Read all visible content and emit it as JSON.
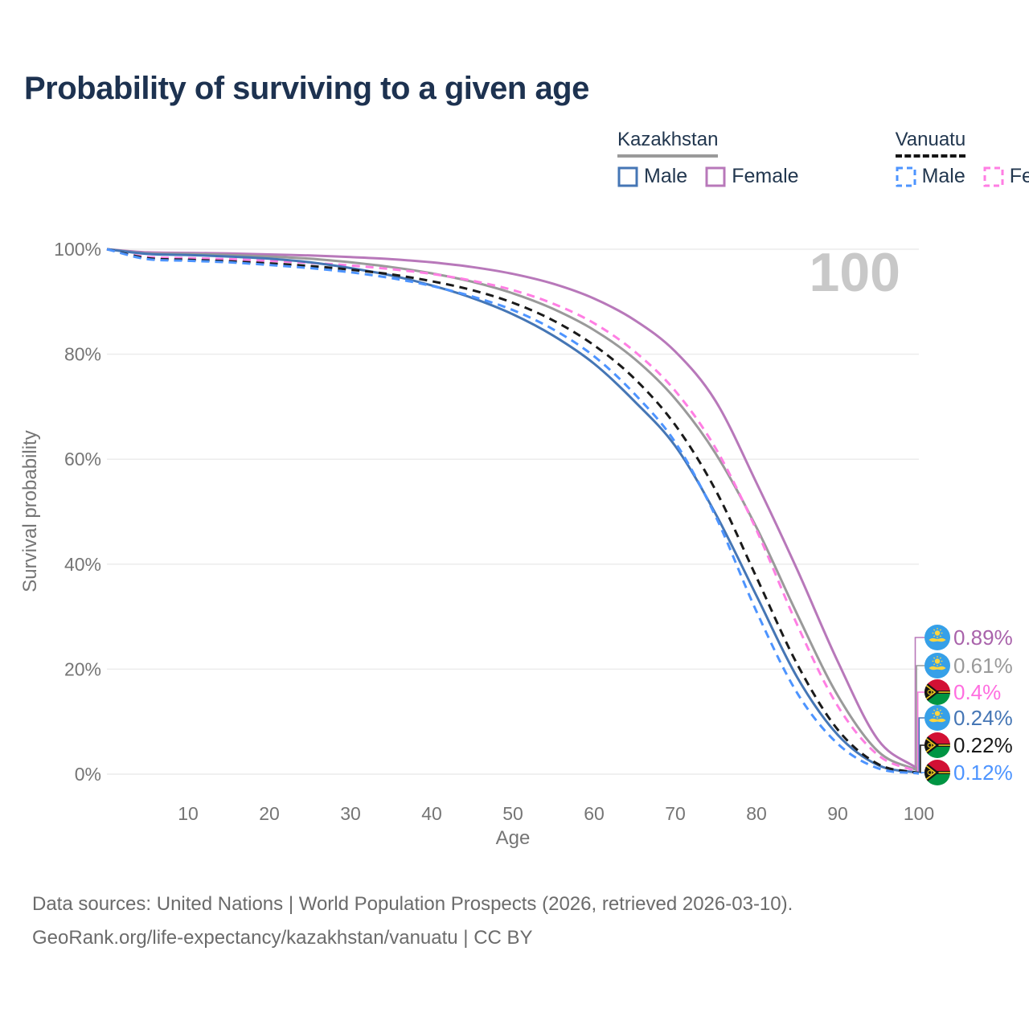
{
  "title": "Probability of surviving to a given age",
  "watermark": "100",
  "legend": {
    "groups": [
      {
        "country": "Kazakhstan",
        "dashed": false,
        "underline_color": "#9a9a9a",
        "items": [
          {
            "label": "Male",
            "color": "#4576b5",
            "dashed": false
          },
          {
            "label": "Female",
            "color": "#b878ba",
            "dashed": false
          }
        ]
      },
      {
        "country": "Vanuatu",
        "dashed": true,
        "underline_color": "#151515",
        "items": [
          {
            "label": "Male",
            "color": "#4d94ff",
            "dashed": true
          },
          {
            "label": "Female",
            "color": "#ff7ee3",
            "dashed": true
          }
        ]
      }
    ]
  },
  "chart_data": {
    "type": "line",
    "title": "Probability of surviving to a given age",
    "xlabel": "Age",
    "ylabel": "Survival probability",
    "xlim": [
      0,
      100
    ],
    "ylim": [
      0,
      100
    ],
    "grid": true,
    "x_ticks": [
      "10",
      "20",
      "30",
      "40",
      "50",
      "60",
      "70",
      "80",
      "90",
      "100"
    ],
    "x_tick_values": [
      10,
      20,
      30,
      40,
      50,
      60,
      70,
      80,
      90,
      100
    ],
    "y_ticks": [
      "100%",
      "80%",
      "60%",
      "40%",
      "20%",
      "0%"
    ],
    "y_tick_values": [
      100,
      80,
      60,
      40,
      20,
      0
    ],
    "x": [
      0,
      5,
      10,
      15,
      20,
      25,
      30,
      35,
      40,
      45,
      50,
      55,
      60,
      65,
      70,
      75,
      80,
      85,
      90,
      95,
      100
    ],
    "series": [
      {
        "name": "Kazakhstan Female",
        "color": "#b878ba",
        "label_color": "#a963ab",
        "dash": "solid",
        "flag": "kz",
        "end_label": "0.89%",
        "values": [
          100,
          99.4,
          99.3,
          99.2,
          99.0,
          98.8,
          98.5,
          98.1,
          97.5,
          96.6,
          95.3,
          93.4,
          90.6,
          86.5,
          80.5,
          71.0,
          55.5,
          39.0,
          21.5,
          6.5,
          0.89
        ]
      },
      {
        "name": "Kazakhstan (both sexes)",
        "color": "#9a9a9a",
        "label_color": "#9a9a9a",
        "dash": "solid",
        "flag": "kz",
        "end_label": "0.61%",
        "values": [
          100,
          99.2,
          99.1,
          98.9,
          98.6,
          98.2,
          97.5,
          96.6,
          95.4,
          93.8,
          91.6,
          88.6,
          84.6,
          79.1,
          71.5,
          61.0,
          47.0,
          30.5,
          15.0,
          4.3,
          0.61
        ]
      },
      {
        "name": "Vanuatu Female",
        "color": "#ff7ee3",
        "label_color": "#ff6ee0",
        "dash": "dashed",
        "flag": "vu",
        "end_label": "0.4%",
        "values": [
          100,
          98.5,
          98.3,
          98.1,
          97.8,
          97.4,
          96.9,
          96.2,
          95.3,
          94.0,
          92.2,
          89.6,
          85.9,
          80.5,
          73.0,
          62.0,
          46.5,
          28.5,
          13.0,
          3.6,
          0.4
        ]
      },
      {
        "name": "Kazakhstan Male",
        "color": "#4576b5",
        "label_color": "#4576b5",
        "dash": "solid",
        "flag": "kz",
        "end_label": "0.24%",
        "values": [
          100,
          99.1,
          98.9,
          98.6,
          98.2,
          97.5,
          96.4,
          95.0,
          93.1,
          90.7,
          87.6,
          83.5,
          78.2,
          71.0,
          62.5,
          49.5,
          34.0,
          18.5,
          7.5,
          1.7,
          0.24
        ]
      },
      {
        "name": "Vanuatu (both sexes)",
        "color": "#1a1a1a",
        "label_color": "#1a1a1a",
        "dash": "dashed",
        "flag": "vu",
        "end_label": "0.22%",
        "values": [
          100,
          98.3,
          98.0,
          97.7,
          97.3,
          96.8,
          96.1,
          95.2,
          93.9,
          92.2,
          89.8,
          86.4,
          81.7,
          75.3,
          66.5,
          54.0,
          37.5,
          21.0,
          8.5,
          1.9,
          0.22
        ]
      },
      {
        "name": "Vanuatu Male",
        "color": "#4d94ff",
        "label_color": "#4d94ff",
        "dash": "dashed",
        "flag": "vu",
        "end_label": "0.12%",
        "values": [
          100,
          98.1,
          97.8,
          97.5,
          97.0,
          96.4,
          95.6,
          94.5,
          93.0,
          91.0,
          88.4,
          84.7,
          79.6,
          72.4,
          63.2,
          49.0,
          31.0,
          15.5,
          5.8,
          1.1,
          0.12
        ]
      }
    ]
  },
  "footer": {
    "line1": "Data sources: United Nations | World Population Prospects (2026, retrieved 2026-03-10).",
    "line2": "GeoRank.org/life-expectancy/kazakhstan/vanuatu | CC BY"
  }
}
